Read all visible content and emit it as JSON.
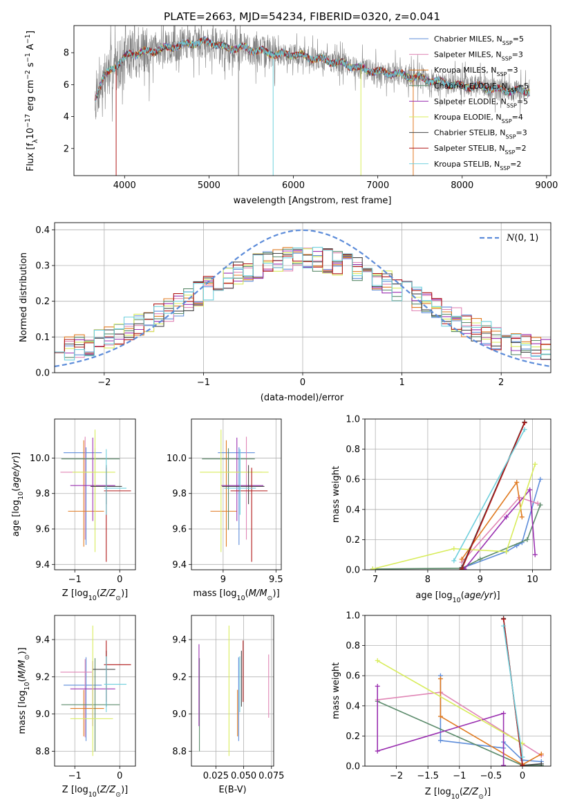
{
  "title": "PLATE=2663, MJD=54234, FIBERID=0320, z=0.041",
  "colors": {
    "chabrier_miles": "#5b8bd9",
    "salpeter_miles": "#e085b5",
    "kroupa_miles": "#e07a20",
    "chabrier_elodie": "#5a8a6a",
    "salpeter_elodie": "#9a2fb0",
    "kroupa_elodie": "#d8ec5a",
    "chabrier_stelib": "#444444",
    "salpeter_stelib": "#b01818",
    "kroupa_stelib": "#6fd0dd",
    "data": "#808080",
    "grid": "#b0b0b0",
    "gaussian": "#5b8bd9"
  },
  "chart_data": [
    {
      "id": "spectrum",
      "type": "line",
      "title": "PLATE=2663, MJD=54234, FIBERID=0320, z=0.041",
      "xlabel": "wavelength [Angstrom, rest frame]",
      "ylabel_parts": [
        "Flux [f",
        "λ",
        "10",
        "−17",
        " erg cm",
        "−2",
        " s",
        "−1",
        " A",
        "−1",
        "]"
      ],
      "xlim": [
        3400,
        9050
      ],
      "ylim": [
        0.3,
        9.7
      ],
      "xticks": [
        4000,
        5000,
        6000,
        7000,
        8000,
        9000
      ],
      "yticks": [
        2,
        4,
        6,
        8
      ],
      "continuum": {
        "x": [
          3650,
          3750,
          3850,
          3950,
          4050,
          4200,
          4400,
          4600,
          4800,
          5000,
          5200,
          5400,
          5600,
          5800,
          6000,
          6200,
          6400,
          6600,
          6800,
          7000,
          7200,
          7400,
          7600,
          7800,
          8000,
          8200,
          8400,
          8600,
          8800
        ],
        "y": [
          5.2,
          6.4,
          7.0,
          7.4,
          7.9,
          8.0,
          8.2,
          8.4,
          8.6,
          8.7,
          8.3,
          8.3,
          8.1,
          7.9,
          7.9,
          7.7,
          7.5,
          7.3,
          7.0,
          6.8,
          6.7,
          6.5,
          6.3,
          6.1,
          5.9,
          5.9,
          5.7,
          5.6,
          5.6
        ]
      },
      "legend": [
        {
          "name": "Chabrier MILES",
          "nssp": "5",
          "color_key": "chabrier_miles"
        },
        {
          "name": "Salpeter MILES",
          "nssp": "3",
          "color_key": "salpeter_miles"
        },
        {
          "name": "Kroupa MILES",
          "nssp": "3",
          "color_key": "kroupa_miles"
        },
        {
          "name": "Chabrier ELODIE",
          "nssp": "5",
          "color_key": "chabrier_elodie"
        },
        {
          "name": "Salpeter ELODIE",
          "nssp": "5",
          "color_key": "salpeter_elodie"
        },
        {
          "name": "Kroupa ELODIE",
          "nssp": "4",
          "color_key": "kroupa_elodie"
        },
        {
          "name": "Chabrier STELIB",
          "nssp": "3",
          "color_key": "chabrier_stelib"
        },
        {
          "name": "Salpeter STELIB",
          "nssp": "2",
          "color_key": "salpeter_stelib"
        },
        {
          "name": "Kroupa STELIB",
          "nssp": "2",
          "color_key": "kroupa_stelib"
        }
      ],
      "legend_placement": "upper right",
      "grid": false
    },
    {
      "id": "residuals",
      "type": "histogram",
      "xlabel": "(data-model)/error",
      "ylabel": "Normed distribution",
      "xlim": [
        -2.5,
        2.5
      ],
      "ylim": [
        0,
        0.42
      ],
      "xticks": [
        -2,
        -1,
        0,
        1,
        2
      ],
      "yticks": [
        0.0,
        0.1,
        0.2,
        0.3,
        0.4
      ],
      "bin_width": 0.1,
      "reference_curve": "N(0,1)",
      "legend_placement": "upper right",
      "grid": true
    },
    {
      "id": "age_vs_Z",
      "type": "errorbar",
      "xlabel": "Z [log10(Z/Z⊙)]",
      "ylabel": "age  [log10(age/yr)]",
      "xlim": [
        -1.45,
        0.35
      ],
      "ylim": [
        9.37,
        10.22
      ],
      "xticks": [
        -1,
        0
      ],
      "yticks": [
        9.4,
        9.6,
        9.8,
        10.0
      ],
      "points": [
        {
          "key": "chabrier_miles",
          "x": -0.75,
          "xerr": [
            0.5,
            0.35
          ],
          "y": 10.03,
          "yerr": [
            0.52,
            0.03
          ]
        },
        {
          "key": "salpeter_miles",
          "x": -0.77,
          "xerr": [
            0.55,
            0.15
          ],
          "y": 9.92,
          "yerr": [
            0.38,
            0.2
          ]
        },
        {
          "key": "kroupa_miles",
          "x": -0.8,
          "xerr": [
            0.35,
            0.45
          ],
          "y": 9.7,
          "yerr": [
            0.2,
            0.4
          ]
        },
        {
          "key": "chabrier_elodie",
          "x": -0.55,
          "xerr": [
            0.75,
            0.55
          ],
          "y": 9.995,
          "yerr": [
            0.4,
            0.06
          ]
        },
        {
          "key": "salpeter_elodie",
          "x": -0.6,
          "xerr": [
            0.5,
            0.5
          ],
          "y": 9.845,
          "yerr": [
            0.2,
            0.27
          ]
        },
        {
          "key": "kroupa_elodie",
          "x": -0.55,
          "xerr": [
            0.5,
            0.45
          ],
          "y": 9.92,
          "yerr": [
            0.45,
            0.24
          ]
        },
        {
          "key": "chabrier_stelib",
          "x": -0.3,
          "xerr": [
            0.35,
            0.35
          ],
          "y": 9.84,
          "yerr": [
            0.1,
            0.12
          ]
        },
        {
          "key": "salpeter_stelib",
          "x": -0.3,
          "xerr": [
            0.05,
            0.55
          ],
          "y": 9.815,
          "yerr": [
            0.4,
            0.13
          ]
        },
        {
          "key": "kroupa_stelib",
          "x": -0.3,
          "xerr": [
            0.05,
            0.45
          ],
          "y": 9.83,
          "yerr": [
            0.15,
            0.22
          ]
        }
      ]
    },
    {
      "id": "age_vs_mass",
      "type": "errorbar",
      "xlabel": "mass [log10(M/M⊙)]",
      "ylabel": "",
      "xlim": [
        8.7,
        9.55
      ],
      "ylim": [
        9.37,
        10.22
      ],
      "xticks": [
        9.0,
        9.5
      ],
      "yticks": [
        9.4,
        9.6,
        9.8,
        10.0
      ],
      "points": [
        {
          "key": "chabrier_miles",
          "x": 9.15,
          "xerr": [
            0.2,
            0.15
          ],
          "y": 10.03,
          "yerr": [
            0.52,
            0.03
          ]
        },
        {
          "key": "salpeter_miles",
          "x": 9.22,
          "xerr": [
            0.2,
            0.15
          ],
          "y": 9.92,
          "yerr": [
            0.38,
            0.2
          ]
        },
        {
          "key": "kroupa_miles",
          "x": 9.03,
          "xerr": [
            0.15,
            0.1
          ],
          "y": 9.7,
          "yerr": [
            0.2,
            0.4
          ]
        },
        {
          "key": "chabrier_elodie",
          "x": 9.05,
          "xerr": [
            0.25,
            0.25
          ],
          "y": 9.995,
          "yerr": [
            0.4,
            0.06
          ]
        },
        {
          "key": "salpeter_elodie",
          "x": 9.13,
          "xerr": [
            0.15,
            0.25
          ],
          "y": 9.845,
          "yerr": [
            0.2,
            0.27
          ]
        },
        {
          "key": "kroupa_elodie",
          "x": 8.98,
          "xerr": [
            0.2,
            0.45
          ],
          "y": 9.92,
          "yerr": [
            0.45,
            0.24
          ]
        },
        {
          "key": "chabrier_stelib",
          "x": 9.24,
          "xerr": [
            0.25,
            0.15
          ],
          "y": 9.84,
          "yerr": [
            0.1,
            0.12
          ]
        },
        {
          "key": "salpeter_stelib",
          "x": 9.27,
          "xerr": [
            0.2,
            0.15
          ],
          "y": 9.815,
          "yerr": [
            0.4,
            0.13
          ]
        },
        {
          "key": "kroupa_stelib",
          "x": 9.16,
          "xerr": [
            0.15,
            0.15
          ],
          "y": 9.83,
          "yerr": [
            0.15,
            0.22
          ]
        }
      ]
    },
    {
      "id": "mass_vs_Z",
      "type": "errorbar",
      "xlabel": "Z [log10(Z/Z⊙)]",
      "ylabel": "mass [log10(M/M⊙)]",
      "xlim": [
        -1.45,
        0.35
      ],
      "ylim": [
        8.72,
        9.53
      ],
      "xticks": [
        -1,
        0
      ],
      "yticks": [
        8.8,
        9.0,
        9.2,
        9.4
      ],
      "points": [
        {
          "key": "chabrier_miles",
          "x": -0.75,
          "xerr": [
            0.5,
            0.35
          ],
          "y": 9.155,
          "yerr": [
            0.3,
            0.15
          ]
        },
        {
          "key": "salpeter_miles",
          "x": -0.77,
          "xerr": [
            0.55,
            0.15
          ],
          "y": 9.225,
          "yerr": [
            0.35,
            0.07
          ]
        },
        {
          "key": "kroupa_miles",
          "x": -0.8,
          "xerr": [
            0.3,
            0.45
          ],
          "y": 9.03,
          "yerr": [
            0.15,
            0.1
          ]
        },
        {
          "key": "chabrier_elodie",
          "x": -0.55,
          "xerr": [
            0.75,
            0.55
          ],
          "y": 9.05,
          "yerr": [
            0.25,
            0.25
          ]
        },
        {
          "key": "salpeter_elodie",
          "x": -0.6,
          "xerr": [
            0.5,
            0.5
          ],
          "y": 9.135,
          "yerr": [
            0.2,
            0.15
          ]
        },
        {
          "key": "kroupa_elodie",
          "x": -0.6,
          "xerr": [
            0.5,
            0.45
          ],
          "y": 8.975,
          "yerr": [
            0.2,
            0.5
          ]
        },
        {
          "key": "chabrier_stelib",
          "x": -0.3,
          "xerr": [
            0.3,
            0.2
          ],
          "y": 9.24,
          "yerr": [
            0.2,
            0.1
          ]
        },
        {
          "key": "salpeter_stelib",
          "x": -0.3,
          "xerr": [
            0.05,
            0.55
          ],
          "y": 9.265,
          "yerr": [
            0.2,
            0.13
          ]
        },
        {
          "key": "kroupa_stelib",
          "x": -0.3,
          "xerr": [
            0.05,
            0.45
          ],
          "y": 9.16,
          "yerr": [
            0.15,
            0.15
          ]
        }
      ]
    },
    {
      "id": "mass_vs_ebv",
      "type": "errorbar",
      "xlabel": "E(B-V)",
      "ylabel": "",
      "xlim": [
        0.003,
        0.077
      ],
      "ylim": [
        8.72,
        9.53
      ],
      "xticks": [
        0.025,
        0.05,
        0.075
      ],
      "xtick_labels": [
        "0.025",
        "0.050",
        "0.075"
      ],
      "yticks": [
        8.8,
        9.0,
        9.2,
        9.4
      ],
      "points": [
        {
          "key": "chabrier_miles",
          "x": 0.0455,
          "xerr": [
            0,
            0
          ],
          "y": 9.155,
          "yerr": [
            0.3,
            0.15
          ]
        },
        {
          "key": "salpeter_miles",
          "x": 0.0725,
          "xerr": [
            0,
            0
          ],
          "y": 9.15,
          "yerr": [
            0.17,
            0.17
          ]
        },
        {
          "key": "kroupa_miles",
          "x": 0.0445,
          "xerr": [
            0,
            0
          ],
          "y": 9.03,
          "yerr": [
            0.15,
            0.1
          ]
        },
        {
          "key": "chabrier_elodie",
          "x": 0.0102,
          "xerr": [
            0,
            0
          ],
          "y": 9.05,
          "yerr": [
            0.25,
            0.25
          ]
        },
        {
          "key": "salpeter_elodie",
          "x": 0.0098,
          "xerr": [
            0,
            0
          ],
          "y": 9.135,
          "yerr": [
            0.2,
            0.24
          ]
        },
        {
          "key": "kroupa_elodie",
          "x": 0.0368,
          "xerr": [
            0,
            0
          ],
          "y": 8.975,
          "yerr": [
            0.2,
            0.5
          ]
        },
        {
          "key": "chabrier_stelib",
          "x": 0.048,
          "xerr": [
            0,
            0
          ],
          "y": 9.24,
          "yerr": [
            0.2,
            0.1
          ]
        },
        {
          "key": "salpeter_stelib",
          "x": 0.0495,
          "xerr": [
            0,
            0
          ],
          "y": 9.265,
          "yerr": [
            0.2,
            0.13
          ]
        },
        {
          "key": "kroupa_stelib",
          "x": 0.0465,
          "xerr": [
            0,
            0
          ],
          "y": 9.16,
          "yerr": [
            0.15,
            0.15
          ]
        }
      ]
    },
    {
      "id": "weight_vs_age",
      "type": "line",
      "xlabel": "age  [log10(age/yr)]",
      "ylabel": "mass weight",
      "xlim": [
        6.8,
        10.35
      ],
      "ylim": [
        0,
        1.0
      ],
      "xticks": [
        7,
        8,
        9,
        10
      ],
      "yticks": [
        0.0,
        0.2,
        0.4,
        0.6,
        0.8,
        1.0
      ],
      "grid": true,
      "series": [
        {
          "key": "chabrier_miles",
          "x": [
            8.65,
            9.5,
            9.7,
            9.8,
            10.15
          ],
          "y": [
            0.01,
            0.12,
            0.16,
            0.18,
            0.6
          ]
        },
        {
          "key": "salpeter_miles",
          "x": [
            8.65,
            9.75,
            10.1
          ],
          "y": [
            0.05,
            0.48,
            0.44
          ]
        },
        {
          "key": "kroupa_miles",
          "x": [
            8.65,
            9.7,
            9.8
          ],
          "y": [
            0.07,
            0.58,
            0.35
          ]
        },
        {
          "key": "chabrier_elodie",
          "x": [
            6.95,
            8.65,
            9.0,
            9.9,
            10.15
          ],
          "y": [
            0.005,
            0.01,
            0.07,
            0.2,
            0.43
          ]
        },
        {
          "key": "salpeter_elodie",
          "x": [
            8.7,
            9.5,
            9.95,
            10.05
          ],
          "y": [
            0.005,
            0.35,
            0.53,
            0.1
          ]
        },
        {
          "key": "kroupa_elodie",
          "x": [
            6.95,
            8.5,
            9.5,
            10.05
          ],
          "y": [
            0.005,
            0.14,
            0.12,
            0.7
          ]
        },
        {
          "key": "chabrier_stelib",
          "x": [
            8.65,
            9.85
          ],
          "y": [
            0.015,
            0.98
          ]
        },
        {
          "key": "salpeter_stelib",
          "x": [
            8.65,
            9.85
          ],
          "y": [
            0.005,
            0.975
          ]
        },
        {
          "key": "kroupa_stelib",
          "x": [
            8.5,
            9.85
          ],
          "y": [
            0.06,
            0.93
          ]
        }
      ]
    },
    {
      "id": "weight_vs_Z",
      "type": "line",
      "xlabel": "Z [log10(Z/Z⊙)]",
      "ylabel": "mass weight",
      "xlim": [
        -2.5,
        0.45
      ],
      "ylim": [
        0,
        1.0
      ],
      "xticks": [
        -2.0,
        -1.5,
        -1.0,
        -0.5,
        0.0
      ],
      "yticks": [
        0.0,
        0.2,
        0.4,
        0.6,
        0.8,
        1.0
      ],
      "grid": true,
      "series": [
        {
          "key": "chabrier_miles",
          "x": [
            -1.3,
            -1.3,
            -0.3,
            -0.3,
            0.0,
            0.3
          ],
          "y": [
            0.6,
            0.17,
            0.12,
            0.16,
            0.04,
            0.03
          ]
        },
        {
          "key": "salpeter_miles",
          "x": [
            -2.3,
            -1.3,
            0.3
          ],
          "y": [
            0.44,
            0.49,
            0.07
          ]
        },
        {
          "key": "kroupa_miles",
          "x": [
            -1.3,
            -1.3,
            0.0,
            0.3
          ],
          "y": [
            0.58,
            0.33,
            0.01,
            0.08
          ]
        },
        {
          "key": "chabrier_elodie",
          "x": [
            -2.3,
            0.0,
            0.3
          ],
          "y": [
            0.43,
            0.005,
            0.005
          ]
        },
        {
          "key": "salpeter_elodie",
          "x": [
            -2.3,
            -2.3,
            -0.3,
            -0.3
          ],
          "y": [
            0.53,
            0.1,
            0.35,
            0.005
          ]
        },
        {
          "key": "kroupa_elodie",
          "x": [
            -2.3,
            0.0
          ],
          "y": [
            0.7,
            0.15
          ]
        },
        {
          "key": "chabrier_stelib",
          "x": [
            -0.3,
            0.0,
            0.3
          ],
          "y": [
            0.98,
            0.005,
            0.015
          ]
        },
        {
          "key": "salpeter_stelib",
          "x": [
            -0.3,
            0.0
          ],
          "y": [
            0.975,
            0.005
          ]
        },
        {
          "key": "kroupa_stelib",
          "x": [
            -0.3,
            0.0
          ],
          "y": [
            0.93,
            0.06
          ]
        }
      ]
    }
  ]
}
